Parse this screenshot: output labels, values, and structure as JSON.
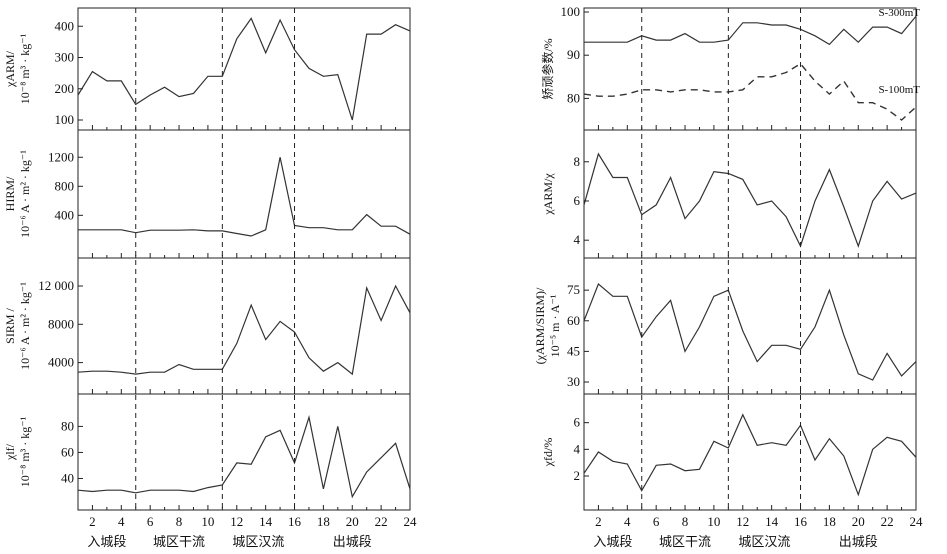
{
  "chart_data": [
    {
      "type": "line",
      "ylabel_lines": [
        "χARM/",
        "10⁻⁸ m³ · kg⁻¹"
      ],
      "ylim": [
        100,
        420
      ],
      "yticks": [
        100,
        200,
        300,
        400
      ],
      "ytick_labels": [
        "100",
        "200",
        "300",
        "400"
      ],
      "x": [
        1,
        2,
        3,
        4,
        5,
        6,
        7,
        8,
        9,
        10,
        11,
        12,
        13,
        14,
        15,
        16,
        17,
        18,
        19,
        20,
        21,
        22,
        23,
        24
      ],
      "series": [
        {
          "values": [
            180,
            255,
            225,
            225,
            150,
            180,
            205,
            175,
            185,
            240,
            240,
            360,
            425,
            315,
            420,
            325,
            265,
            240,
            245,
            100,
            375,
            375,
            405,
            385
          ]
        }
      ]
    },
    {
      "type": "line",
      "ylabel_lines": [
        "HIRM/",
        "10⁻⁶ A · m² · kg⁻¹"
      ],
      "ylim": [
        60,
        1300
      ],
      "yticks": [
        400,
        800,
        1200
      ],
      "ytick_labels": [
        "400",
        "800",
        "1200"
      ],
      "x": [
        1,
        2,
        3,
        4,
        5,
        6,
        7,
        8,
        9,
        10,
        11,
        12,
        13,
        14,
        15,
        16,
        17,
        18,
        19,
        20,
        21,
        22,
        23,
        24
      ],
      "series": [
        {
          "values": [
            200,
            200,
            200,
            200,
            160,
            195,
            195,
            195,
            200,
            185,
            185,
            150,
            115,
            200,
            1200,
            260,
            230,
            230,
            200,
            200,
            410,
            250,
            250,
            140
          ]
        }
      ]
    },
    {
      "type": "line",
      "ylabel_lines": [
        "SIRM /",
        "10⁻⁶ A · m² · kg⁻¹"
      ],
      "ylim": [
        2600,
        12000
      ],
      "yticks": [
        4000,
        8000,
        12000
      ],
      "ytick_labels": [
        "4000",
        "8000",
        "12 000"
      ],
      "x": [
        1,
        2,
        3,
        4,
        5,
        6,
        7,
        8,
        9,
        10,
        11,
        12,
        13,
        14,
        15,
        16,
        17,
        18,
        19,
        20,
        21,
        22,
        23,
        24
      ],
      "series": [
        {
          "values": [
            3000,
            3100,
            3100,
            3000,
            2800,
            3000,
            3000,
            3800,
            3300,
            3300,
            3300,
            6000,
            10000,
            6400,
            8300,
            7200,
            4500,
            3100,
            4000,
            2800,
            11800,
            8400,
            12000,
            9200
          ]
        }
      ]
    },
    {
      "type": "line",
      "ylabel_lines": [
        "χlf/",
        "10⁻⁸ m³ · kg⁻¹"
      ],
      "ylim": [
        25,
        88
      ],
      "yticks": [
        40,
        60,
        80
      ],
      "ytick_labels": [
        "40",
        "60",
        "80"
      ],
      "x": [
        1,
        2,
        3,
        4,
        5,
        6,
        7,
        8,
        9,
        10,
        11,
        12,
        13,
        14,
        15,
        16,
        17,
        18,
        19,
        20,
        21,
        22,
        23,
        24
      ],
      "series": [
        {
          "values": [
            31,
            30,
            31,
            31,
            29,
            31,
            31,
            31,
            30,
            33,
            35,
            52,
            51,
            72,
            77,
            52,
            87,
            32,
            80,
            26,
            45,
            56,
            67,
            32
          ]
        }
      ]
    },
    {
      "type": "line",
      "ylabel_lines": [
        "矫顽参数/%"
      ],
      "ylim": [
        75,
        100
      ],
      "yticks": [
        80,
        90,
        100
      ],
      "ytick_labels": [
        "80",
        "90",
        "100"
      ],
      "x": [
        1,
        2,
        3,
        4,
        5,
        6,
        7,
        8,
        9,
        10,
        11,
        12,
        13,
        14,
        15,
        16,
        17,
        18,
        19,
        20,
        21,
        22,
        23,
        24
      ],
      "series": [
        {
          "name": "S-300mT",
          "style": "solid",
          "values": [
            93,
            93,
            93,
            93,
            94.5,
            93.5,
            93.5,
            95,
            93,
            93,
            93.5,
            97.5,
            97.5,
            97,
            97,
            96,
            94.5,
            92.5,
            96,
            93,
            96.5,
            96.5,
            95,
            99
          ]
        },
        {
          "name": "S-100mT",
          "style": "dashed",
          "values": [
            81,
            80.5,
            80.5,
            81,
            82,
            82,
            81.5,
            82,
            82,
            81.5,
            81.5,
            82,
            85,
            85,
            86,
            88,
            84,
            81,
            84,
            79,
            79,
            77.5,
            75,
            78
          ]
        }
      ]
    },
    {
      "type": "line",
      "ylabel_lines": [
        "χARM/χ"
      ],
      "ylim": [
        3.5,
        8.6
      ],
      "yticks": [
        4,
        6,
        8
      ],
      "ytick_labels": [
        "4",
        "6",
        "8"
      ],
      "x": [
        1,
        2,
        3,
        4,
        5,
        6,
        7,
        8,
        9,
        10,
        11,
        12,
        13,
        14,
        15,
        16,
        17,
        18,
        19,
        20,
        21,
        22,
        23,
        24
      ],
      "series": [
        {
          "values": [
            5.8,
            8.4,
            7.2,
            7.2,
            5.3,
            5.8,
            7.2,
            5.1,
            6.0,
            7.5,
            7.4,
            7.1,
            5.8,
            6.0,
            5.2,
            3.7,
            6.0,
            7.6,
            5.7,
            3.7,
            6.0,
            7.0,
            6.1,
            6.4
          ]
        }
      ]
    },
    {
      "type": "line",
      "ylabel_lines": [
        "(χARM/SIRM)/",
        "10⁻⁵ m · A⁻¹"
      ],
      "ylim": [
        30,
        79
      ],
      "yticks": [
        30,
        45,
        60,
        75
      ],
      "ytick_labels": [
        "30",
        "45",
        "60",
        "75"
      ],
      "x": [
        1,
        2,
        3,
        4,
        5,
        6,
        7,
        8,
        9,
        10,
        11,
        12,
        13,
        14,
        15,
        16,
        17,
        18,
        19,
        20,
        21,
        22,
        23,
        24
      ],
      "series": [
        {
          "values": [
            60,
            78,
            72,
            72,
            52,
            62,
            70,
            45,
            57,
            72,
            75,
            55,
            40,
            48,
            48,
            46,
            57,
            75,
            53,
            34,
            31,
            44,
            33,
            40
          ]
        }
      ]
    },
    {
      "type": "line",
      "ylabel_lines": [
        "χfd/%"
      ],
      "ylim": [
        0.5,
        6.8
      ],
      "yticks": [
        2,
        4,
        6
      ],
      "ytick_labels": [
        "2",
        "4",
        "6"
      ],
      "x": [
        1,
        2,
        3,
        4,
        5,
        6,
        7,
        8,
        9,
        10,
        11,
        12,
        13,
        14,
        15,
        16,
        17,
        18,
        19,
        20,
        21,
        22,
        23,
        24
      ],
      "series": [
        {
          "values": [
            2.2,
            3.8,
            3.1,
            2.9,
            0.9,
            2.8,
            2.9,
            2.4,
            2.5,
            4.6,
            4.1,
            6.6,
            4.3,
            4.5,
            4.3,
            5.8,
            3.2,
            4.8,
            3.5,
            0.6,
            4.0,
            4.9,
            4.6,
            3.4
          ]
        }
      ]
    }
  ],
  "x_axis": {
    "ticks": [
      2,
      4,
      6,
      8,
      10,
      12,
      14,
      16,
      18,
      20,
      22,
      24
    ],
    "tick_labels": [
      "2",
      "4",
      "6",
      "8",
      "10",
      "12",
      "14",
      "16",
      "18",
      "20",
      "22",
      "24"
    ],
    "segment_dividers": [
      5,
      11,
      16
    ],
    "segments": [
      {
        "label": "入城段",
        "from": 1,
        "to": 5
      },
      {
        "label": "城区干流",
        "from": 5,
        "to": 11
      },
      {
        "label": "城区汉流",
        "from": 11,
        "to": 16
      },
      {
        "label": "出城段",
        "from": 16,
        "to": 24
      }
    ]
  }
}
